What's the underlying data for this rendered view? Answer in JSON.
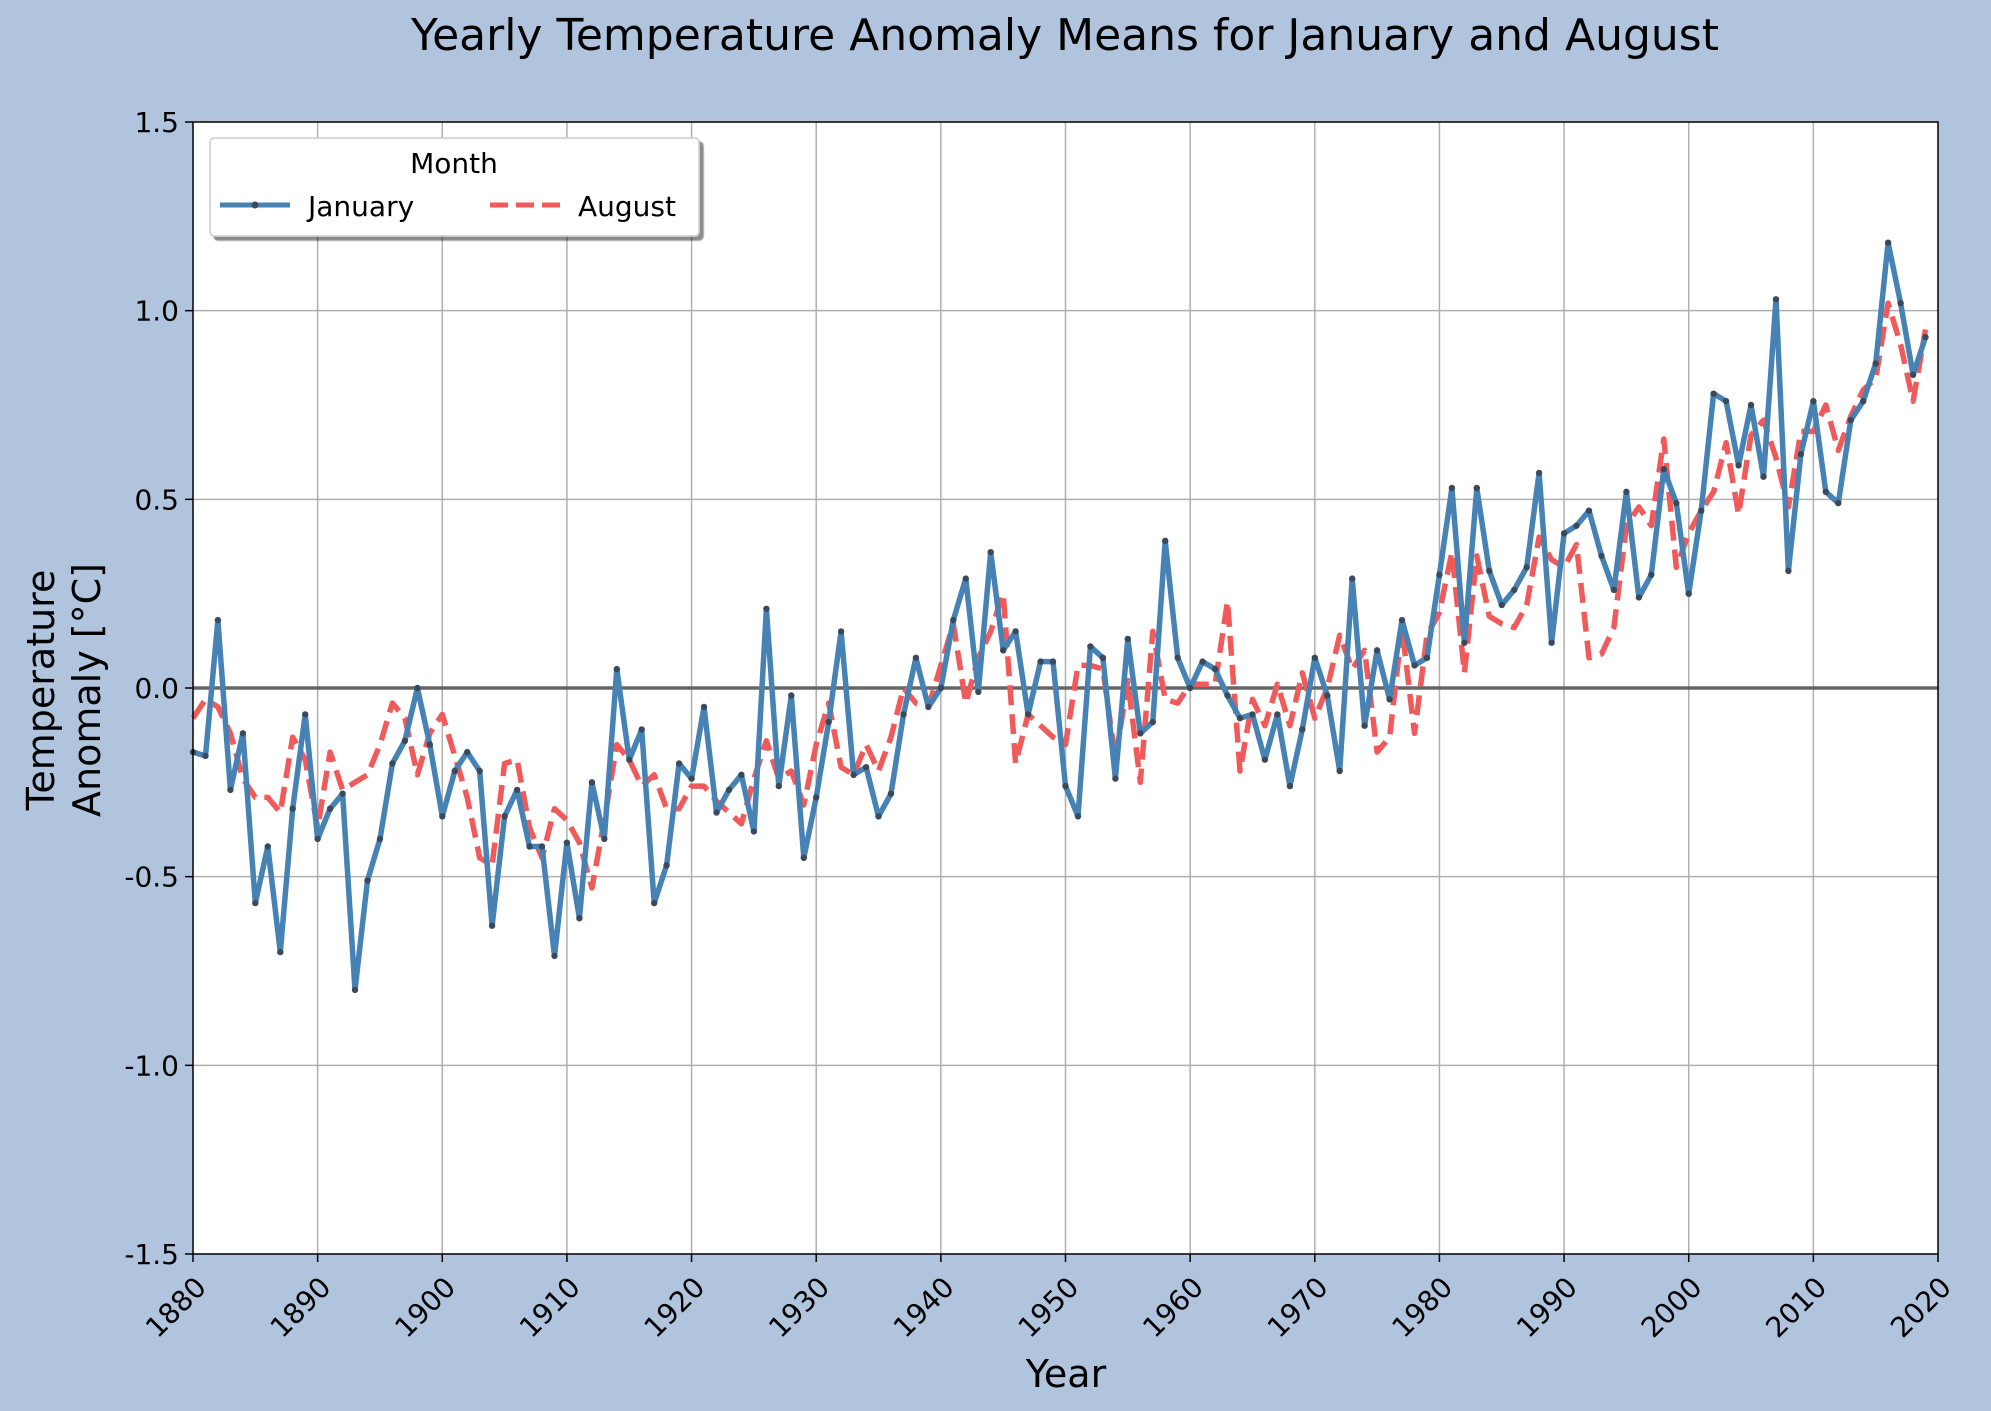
{
  "colors": {
    "figure_bg": "#b0c4de",
    "plot_bg": "#ffffff",
    "grid": "#b0b0b0",
    "zero_line": "#666666",
    "january": "#4682b4",
    "august": "#f05a5a",
    "marker": "#3a4a5a"
  },
  "chart_data": {
    "type": "line",
    "title": "Yearly Temperature Anomaly Means for January and August",
    "xlabel": "Year",
    "ylabel": [
      "Temperature",
      "Anomaly [°C]"
    ],
    "xlim": [
      1880,
      2020
    ],
    "ylim": [
      -1.5,
      1.5
    ],
    "x_ticks": [
      1880,
      1890,
      1900,
      1910,
      1920,
      1930,
      1940,
      1950,
      1960,
      1970,
      1980,
      1990,
      2000,
      2010,
      2020
    ],
    "y_ticks": [
      -1.5,
      -1.0,
      -0.5,
      0.0,
      0.5,
      1.0,
      1.5
    ],
    "y_tick_labels": [
      "-1.5",
      "-1.0",
      "-0.5",
      "0.0",
      "0.5",
      "1.0",
      "1.5"
    ],
    "grid": true,
    "reference_line": 0.0,
    "legend": {
      "title": "Month",
      "placement": "top-left"
    },
    "x_start": 1880,
    "x_step": 1,
    "series": [
      {
        "name": "January",
        "style": "solid-with-markers",
        "color": "#4682b4",
        "values": [
          -0.17,
          -0.18,
          0.18,
          -0.27,
          -0.12,
          -0.57,
          -0.42,
          -0.7,
          -0.32,
          -0.07,
          -0.4,
          -0.32,
          -0.28,
          -0.8,
          -0.51,
          -0.4,
          -0.2,
          -0.14,
          0.0,
          -0.15,
          -0.34,
          -0.22,
          -0.17,
          -0.22,
          -0.63,
          -0.34,
          -0.27,
          -0.42,
          -0.42,
          -0.71,
          -0.41,
          -0.61,
          -0.25,
          -0.4,
          0.05,
          -0.19,
          -0.11,
          -0.57,
          -0.47,
          -0.2,
          -0.24,
          -0.05,
          -0.33,
          -0.27,
          -0.23,
          -0.38,
          0.21,
          -0.26,
          -0.02,
          -0.45,
          -0.29,
          -0.09,
          0.15,
          -0.23,
          -0.21,
          -0.34,
          -0.28,
          -0.07,
          0.08,
          -0.05,
          0.0,
          0.18,
          0.29,
          -0.01,
          0.36,
          0.1,
          0.15,
          -0.07,
          0.07,
          0.07,
          -0.26,
          -0.34,
          0.11,
          0.08,
          -0.24,
          0.13,
          -0.12,
          -0.09,
          0.39,
          0.08,
          0.0,
          0.07,
          0.05,
          -0.02,
          -0.08,
          -0.07,
          -0.19,
          -0.07,
          -0.26,
          -0.11,
          0.08,
          -0.02,
          -0.22,
          0.29,
          -0.1,
          0.1,
          -0.03,
          0.18,
          0.06,
          0.08,
          0.3,
          0.53,
          0.12,
          0.53,
          0.31,
          0.22,
          0.26,
          0.32,
          0.57,
          0.12,
          0.41,
          0.43,
          0.47,
          0.35,
          0.26,
          0.52,
          0.24,
          0.3,
          0.58,
          0.49,
          0.25,
          0.47,
          0.78,
          0.76,
          0.59,
          0.75,
          0.56,
          1.03,
          0.31,
          0.62,
          0.76,
          0.52,
          0.49,
          0.71,
          0.76,
          0.86,
          1.18,
          1.02,
          0.83,
          0.93
        ]
      },
      {
        "name": "August",
        "style": "dashed",
        "color": "#f05a5a",
        "values": [
          -0.08,
          -0.03,
          -0.05,
          -0.12,
          -0.24,
          -0.29,
          -0.29,
          -0.33,
          -0.13,
          -0.19,
          -0.37,
          -0.17,
          -0.27,
          -0.25,
          -0.23,
          -0.15,
          -0.04,
          -0.08,
          -0.23,
          -0.12,
          -0.07,
          -0.18,
          -0.29,
          -0.45,
          -0.47,
          -0.2,
          -0.19,
          -0.37,
          -0.45,
          -0.32,
          -0.35,
          -0.41,
          -0.53,
          -0.35,
          -0.15,
          -0.19,
          -0.26,
          -0.23,
          -0.32,
          -0.32,
          -0.26,
          -0.26,
          -0.3,
          -0.33,
          -0.36,
          -0.24,
          -0.14,
          -0.24,
          -0.22,
          -0.31,
          -0.15,
          -0.04,
          -0.21,
          -0.23,
          -0.15,
          -0.22,
          -0.13,
          0.0,
          -0.04,
          -0.05,
          0.06,
          0.17,
          -0.04,
          0.08,
          0.15,
          0.25,
          -0.2,
          -0.07,
          -0.1,
          -0.13,
          -0.15,
          0.06,
          0.06,
          0.05,
          -0.19,
          0.02,
          -0.25,
          0.15,
          -0.03,
          -0.04,
          0.01,
          0.01,
          0.01,
          0.23,
          -0.22,
          -0.03,
          -0.1,
          0.01,
          -0.1,
          0.04,
          -0.08,
          0.0,
          0.14,
          0.05,
          0.1,
          -0.17,
          -0.13,
          0.16,
          -0.12,
          0.14,
          0.2,
          0.36,
          0.04,
          0.35,
          0.19,
          0.17,
          0.16,
          0.22,
          0.4,
          0.34,
          0.32,
          0.38,
          0.08,
          0.09,
          0.16,
          0.43,
          0.48,
          0.43,
          0.66,
          0.32,
          0.41,
          0.47,
          0.52,
          0.65,
          0.46,
          0.67,
          0.71,
          0.61,
          0.48,
          0.68,
          0.68,
          0.75,
          0.63,
          0.72,
          0.79,
          0.82,
          1.02,
          0.91,
          0.76,
          0.95
        ]
      }
    ]
  }
}
